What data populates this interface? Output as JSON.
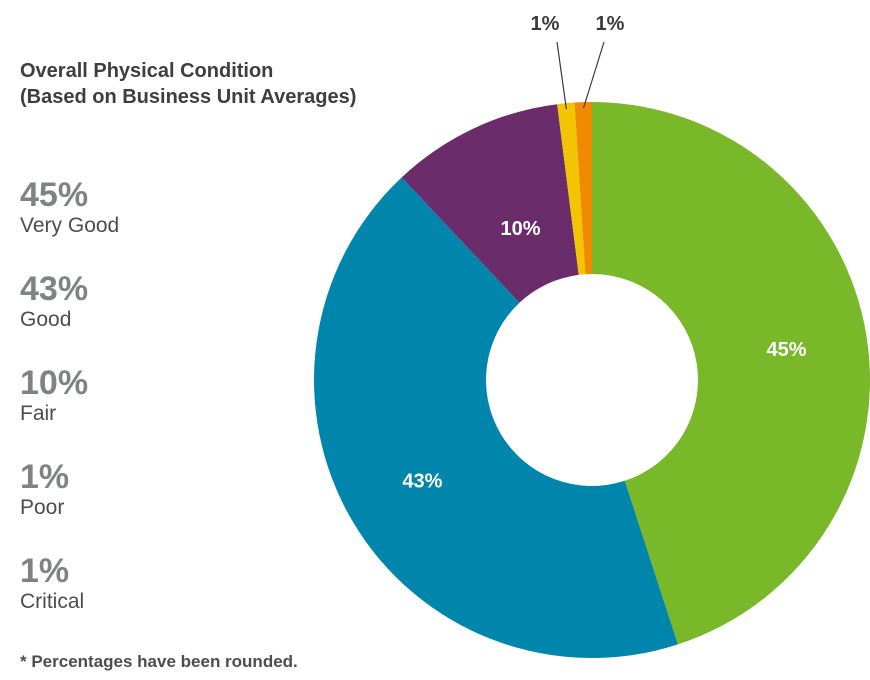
{
  "chart_data": {
    "type": "pie",
    "title": "Overall Physical Condition",
    "subtitle": "(Based on Business Unit Averages)",
    "footnote": "* Percentages have been rounded.",
    "value_unit": "%",
    "slices": [
      {
        "label": "Very Good",
        "value": 45,
        "display": "45%",
        "color": "#78b829"
      },
      {
        "label": "Good",
        "value": 43,
        "display": "43%",
        "color": "#0085ad"
      },
      {
        "label": "Fair",
        "value": 10,
        "display": "10%",
        "color": "#6b2c6b"
      },
      {
        "label": "Poor",
        "value": 1,
        "display": "1%",
        "color": "#f2c500"
      },
      {
        "label": "Critical",
        "value": 1,
        "display": "1%",
        "color": "#f08a00"
      }
    ],
    "hole": "donut",
    "legend_placement": "left"
  }
}
